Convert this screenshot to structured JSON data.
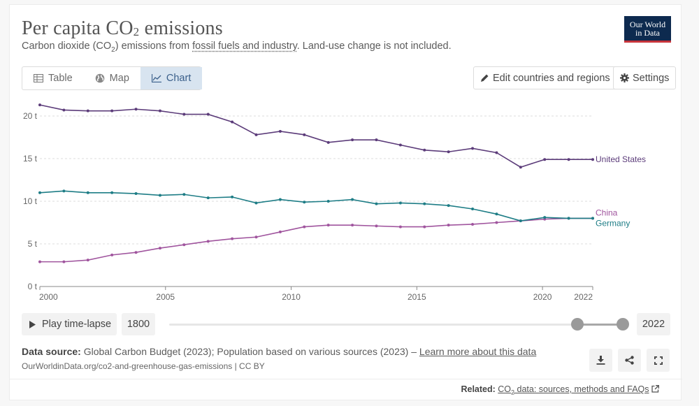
{
  "header": {
    "title_main": "Per capita CO",
    "title_sub": "2",
    "title_end": " emissions",
    "subtitle_a": "Carbon dioxide (CO",
    "subtitle_sub": "2",
    "subtitle_b": ") emissions from ",
    "subtitle_link": "fossil fuels and industry",
    "subtitle_c": ". Land-use change is not included.",
    "logo_line1": "Our World",
    "logo_line2": "in Data"
  },
  "tabs": [
    {
      "label": "Table",
      "icon": "table-icon"
    },
    {
      "label": "Map",
      "icon": "globe-icon"
    },
    {
      "label": "Chart",
      "icon": "line-chart-icon",
      "active": true
    }
  ],
  "toolbar": {
    "edit_label": "Edit countries and regions",
    "settings_label": "Settings"
  },
  "timeline": {
    "play_label": "Play time-lapse",
    "start_year": "1800",
    "end_year": "2022",
    "range_start_fraction": 0.902,
    "range_end_fraction": 1.0
  },
  "footer": {
    "source_label": "Data source:",
    "source_text": " Global Carbon Budget (2023); Population based on various sources (2023) – ",
    "source_link": "Learn more about this data",
    "url": "OurWorldinData.org/co2-and-greenhouse-gas-emissions | CC BY",
    "related_label": "Related:",
    "related_link_a": "CO",
    "related_link_sub": "2",
    "related_link_b": " data: sources, methods and FAQs"
  },
  "colors": {
    "united_states": "#5c3c7a",
    "china": "#a0559e",
    "germany": "#1e7d86",
    "grid": "#dddddd"
  },
  "chart_data": {
    "type": "line",
    "title": "Per capita CO₂ emissions",
    "xlabel": "",
    "ylabel": "",
    "xlim": [
      2000,
      2022
    ],
    "ylim": [
      0,
      20
    ],
    "yticks": [
      0,
      5,
      10,
      15,
      20
    ],
    "ytick_labels": [
      "0 t",
      "5 t",
      "10 t",
      "15 t",
      "20 t"
    ],
    "xtick_labels": [
      "2000",
      "2005",
      "2010",
      "2015",
      "2020",
      "2022"
    ],
    "xticks": [
      2000,
      2005,
      2010,
      2015,
      2020,
      2022
    ],
    "x": [
      1999,
      2000,
      2001,
      2002,
      2003,
      2004,
      2005,
      2006,
      2007,
      2008,
      2009,
      2010,
      2011,
      2012,
      2013,
      2014,
      2015,
      2016,
      2017,
      2018,
      2019,
      2020,
      2021,
      2022
    ],
    "series": [
      {
        "name": "United States",
        "color_key": "united_states",
        "values": [
          21.3,
          20.7,
          20.6,
          20.6,
          20.8,
          20.6,
          20.2,
          20.2,
          19.3,
          17.8,
          18.2,
          17.8,
          16.9,
          17.2,
          17.2,
          16.6,
          16.0,
          15.8,
          16.2,
          15.7,
          14.0,
          14.9,
          14.9,
          14.9
        ]
      },
      {
        "name": "China",
        "color_key": "china",
        "values": [
          2.9,
          2.9,
          3.1,
          3.7,
          4.0,
          4.5,
          4.9,
          5.3,
          5.6,
          5.8,
          6.4,
          7.0,
          7.2,
          7.2,
          7.1,
          7.0,
          7.0,
          7.2,
          7.3,
          7.5,
          7.7,
          7.9,
          8.0,
          8.0
        ]
      },
      {
        "name": "Germany",
        "color_key": "germany",
        "values": [
          11.0,
          11.2,
          11.0,
          11.0,
          10.9,
          10.7,
          10.8,
          10.4,
          10.5,
          9.8,
          10.2,
          9.9,
          10.0,
          10.2,
          9.7,
          9.8,
          9.7,
          9.5,
          9.1,
          8.5,
          7.7,
          8.1,
          8.0,
          8.0
        ]
      }
    ],
    "legend": "inline-right"
  }
}
